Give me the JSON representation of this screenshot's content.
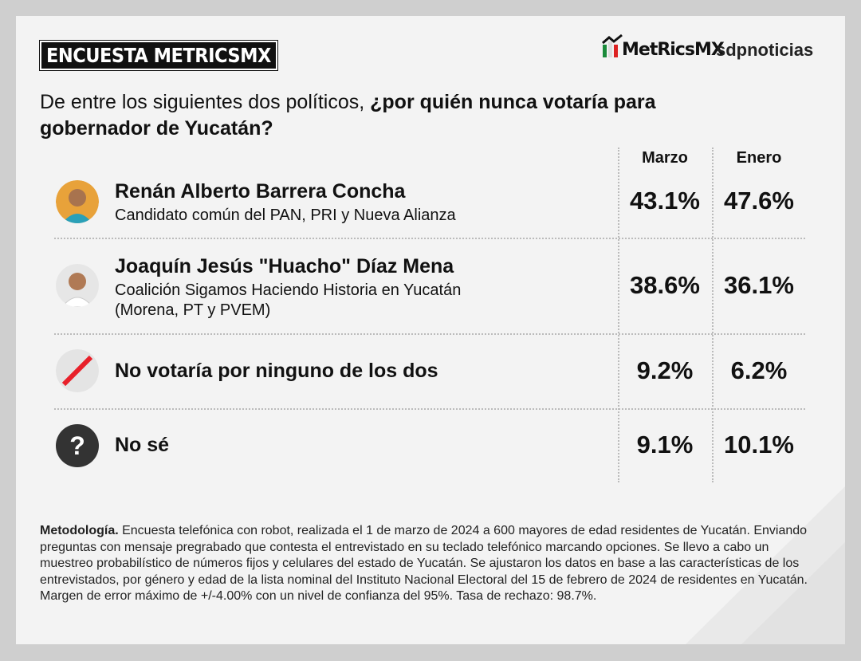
{
  "header": {
    "badge": "ENCUESTA METRICSMX",
    "logo_metrics": "MetRicsMX",
    "logo_sdp": "sdpnoticias"
  },
  "question": {
    "intro": "De entre los siguientes dos políticos, ",
    "emphasis": "¿por quién nunca votaría para gobernador de Yucatán?"
  },
  "table": {
    "columns": [
      "Marzo",
      "Enero"
    ],
    "rows": [
      {
        "name": "Renán Alberto Barrera Concha",
        "description": "Candidato común del PAN, PRI y Nueva Alianza",
        "values": [
          "43.1%",
          "47.6%"
        ]
      },
      {
        "name": "Joaquín Jesús \"Huacho\" Díaz Mena",
        "description": "Coalición Sigamos Haciendo Historia en Yucatán (Morena, PT y PVEM)",
        "values": [
          "38.6%",
          "36.1%"
        ]
      },
      {
        "name": "No votaría por ninguno de los dos",
        "values": [
          "9.2%",
          "6.2%"
        ]
      },
      {
        "icon": "?",
        "name": "No sé",
        "values": [
          "9.1%",
          "10.1%"
        ]
      }
    ]
  },
  "methodology": {
    "label": "Metodología.",
    "text": " Encuesta telefónica con robot, realizada el 1 de marzo de 2024 a 600 mayores de edad residentes de Yucatán. Enviando preguntas con mensaje pregrabado que contesta el entrevistado en su teclado telefónico marcando opciones. Se llevo a cabo un muestreo probabilístico de números fijos y celulares del estado de Yucatán. Se ajustaron los datos en base a las características de los entrevistados, por género y edad de la lista nominal del Instituto Nacional Electoral del 15 de febrero de 2024 de residentes en Yucatán. Margen de error máximo de +/-4.00% con un nivel de confianza del 95%. Tasa de rechazo: 98.7%."
  }
}
